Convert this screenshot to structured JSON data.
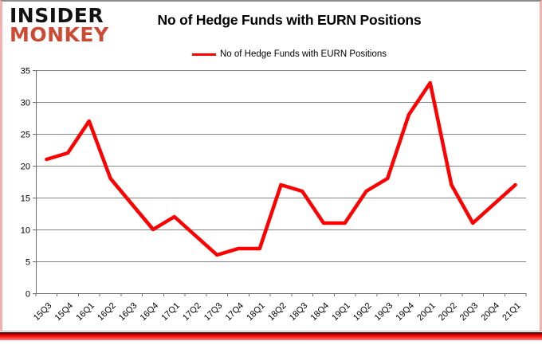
{
  "logo": {
    "line1": "INSIDER",
    "line2": "MONKEY",
    "line1_color": "#121212",
    "line2_color": "#cc4a33"
  },
  "title": "No of Hedge Funds with EURN Positions",
  "legend": {
    "label": "No of Hedge Funds with EURN Positions",
    "line_color": "#fe0000",
    "position": "top"
  },
  "chart_data": {
    "type": "line",
    "categories": [
      "15Q3",
      "15Q4",
      "16Q1",
      "16Q2",
      "16Q3",
      "16Q4",
      "17Q1",
      "17Q2",
      "17Q3",
      "17Q4",
      "18Q1",
      "18Q2",
      "18Q3",
      "18Q4",
      "19Q1",
      "19Q2",
      "19Q3",
      "19Q4",
      "20Q1",
      "20Q2",
      "20Q3",
      "20Q4",
      "21Q1"
    ],
    "series": [
      {
        "name": "No of Hedge Funds with EURN Positions",
        "values": [
          21,
          22,
          27,
          18,
          14,
          10,
          12,
          9,
          6,
          7,
          7,
          17,
          16,
          11,
          11,
          16,
          18,
          28,
          33,
          17,
          11,
          14,
          17
        ]
      }
    ],
    "title": "No of Hedge Funds with EURN Positions",
    "xlabel": "",
    "ylabel": "",
    "ylim": [
      0,
      35
    ],
    "ytick_interval": 5,
    "grid": true,
    "legend_position": "top",
    "line_color": "#fe0000",
    "gridline_color": "#858585",
    "axis_color": "#6e6e6e",
    "tick_label_color": "#000000"
  },
  "footer": {
    "bar_gradient_top": "#3c0000",
    "bar_gradient_mid": "#f00000",
    "bar_gradient_bottom": "#ff7a7a"
  }
}
